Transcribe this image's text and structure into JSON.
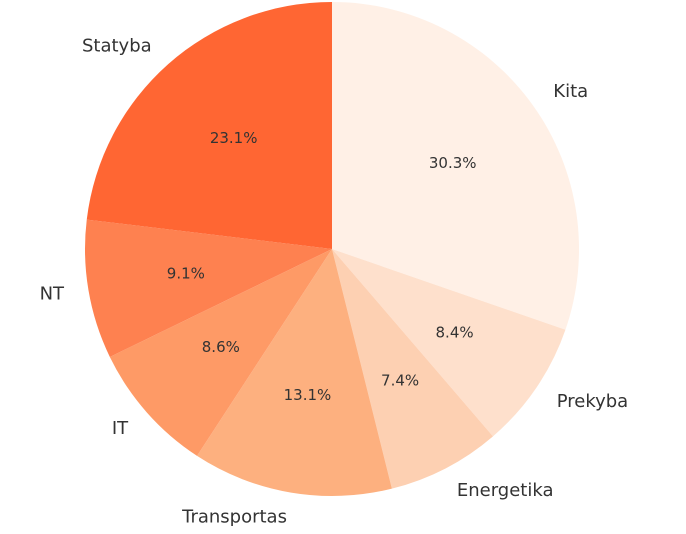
{
  "chart_data": {
    "type": "pie",
    "title": "",
    "start_angle_deg": 90,
    "direction": "clockwise",
    "slices": [
      {
        "label": "Kita",
        "value": 30.3,
        "pct_label": "30.3%",
        "color": "#fff0e6"
      },
      {
        "label": "Prekyba",
        "value": 8.4,
        "pct_label": "8.4%",
        "color": "#fee0cc"
      },
      {
        "label": "Energetika",
        "value": 7.4,
        "pct_label": "7.4%",
        "color": "#fdd0b2"
      },
      {
        "label": "Transportas",
        "value": 13.1,
        "pct_label": "13.1%",
        "color": "#fdb07f"
      },
      {
        "label": "IT",
        "value": 8.6,
        "pct_label": "8.6%",
        "color": "#fe9a66"
      },
      {
        "label": "NT",
        "value": 9.1,
        "pct_label": "9.1%",
        "color": "#fe8150"
      },
      {
        "label": "Statyba",
        "value": 23.1,
        "pct_label": "23.1%",
        "color": "#ff6633"
      }
    ]
  }
}
